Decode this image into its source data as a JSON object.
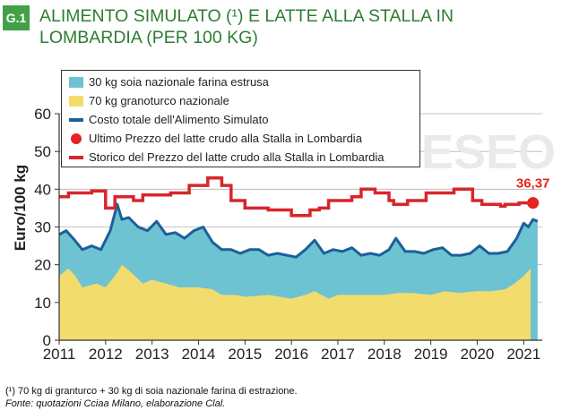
{
  "header": {
    "badge": "G.1",
    "title": "ALIMENTO SIMULATO (¹) E LATTE ALLA STALLA IN LOMBARDIA (PER 100 KG)"
  },
  "footnote": {
    "note": "(¹) 70 kg di granturco + 30 kg di soia nazionale farina di estrazione.",
    "source": "Fonte: quotazioni Cciaa Milano, elaborazione Clal."
  },
  "watermark": "ESEO",
  "colors": {
    "soia": "#6dc3d1",
    "granoturco": "#f2dc6e",
    "costo_totale": "#1d5f9a",
    "ultimo_prezzo": "#e52320",
    "storico_latte": "#d7262b",
    "title_green": "#2e7d32"
  },
  "chart_data": {
    "type": "area",
    "title": "",
    "xlabel": "",
    "ylabel": "Euro/100 kg",
    "xlim": [
      2011,
      2021.4
    ],
    "ylim": [
      0,
      60
    ],
    "yticks": [
      0,
      10,
      20,
      30,
      40,
      50,
      60
    ],
    "xticks": [
      "2011",
      "2012",
      "2013",
      "2014",
      "2015",
      "2016",
      "2017",
      "2018",
      "2019",
      "2020",
      "2021"
    ],
    "legend_position": "top-left",
    "grid": true,
    "legend": [
      {
        "label": "30 kg soia nazionale farina estrusa",
        "kind": "area",
        "color": "#6dc3d1"
      },
      {
        "label": "70 kg granoturco nazionale",
        "kind": "area",
        "color": "#f2dc6e"
      },
      {
        "label": "Costo totale dell'Alimento Simulato",
        "kind": "line",
        "color": "#1d5f9a"
      },
      {
        "label": "Ultimo Prezzo del latte crudo alla Stalla in Lombardia",
        "kind": "dot",
        "color": "#e52320"
      },
      {
        "label": "Storico del Prezzo del latte crudo alla Stalla in Lombardia",
        "kind": "line",
        "color": "#d7262b"
      }
    ],
    "series": [
      {
        "name": "70 kg granoturco nazionale",
        "kind": "area",
        "points": [
          [
            2011.0,
            17
          ],
          [
            2011.2,
            19
          ],
          [
            2011.35,
            17
          ],
          [
            2011.5,
            14
          ],
          [
            2011.8,
            15
          ],
          [
            2012.0,
            14
          ],
          [
            2012.2,
            17
          ],
          [
            2012.35,
            20
          ],
          [
            2012.55,
            18
          ],
          [
            2012.8,
            15
          ],
          [
            2013.0,
            16
          ],
          [
            2013.3,
            15
          ],
          [
            2013.6,
            14
          ],
          [
            2014.0,
            14
          ],
          [
            2014.3,
            13.5
          ],
          [
            2014.5,
            12
          ],
          [
            2014.8,
            12
          ],
          [
            2015.0,
            11.5
          ],
          [
            2015.5,
            12
          ],
          [
            2016.0,
            11
          ],
          [
            2016.3,
            12
          ],
          [
            2016.5,
            13
          ],
          [
            2016.8,
            11
          ],
          [
            2017.0,
            12
          ],
          [
            2017.5,
            12
          ],
          [
            2018.0,
            12
          ],
          [
            2018.3,
            12.5
          ],
          [
            2018.6,
            12.5
          ],
          [
            2019.0,
            12
          ],
          [
            2019.3,
            13
          ],
          [
            2019.6,
            12.5
          ],
          [
            2020.0,
            13
          ],
          [
            2020.3,
            13
          ],
          [
            2020.6,
            13.5
          ],
          [
            2020.8,
            15
          ],
          [
            2021.0,
            17
          ],
          [
            2021.15,
            19
          ]
        ]
      },
      {
        "name": "Costo totale dell'Alimento Simulato",
        "kind": "line",
        "points": [
          [
            2011.0,
            28
          ],
          [
            2011.15,
            29
          ],
          [
            2011.3,
            27
          ],
          [
            2011.5,
            24
          ],
          [
            2011.7,
            25
          ],
          [
            2011.9,
            24
          ],
          [
            2012.1,
            29
          ],
          [
            2012.25,
            36
          ],
          [
            2012.35,
            32
          ],
          [
            2012.5,
            32.5
          ],
          [
            2012.7,
            30
          ],
          [
            2012.9,
            29
          ],
          [
            2013.1,
            31.5
          ],
          [
            2013.3,
            28
          ],
          [
            2013.5,
            28.5
          ],
          [
            2013.7,
            27
          ],
          [
            2013.9,
            29
          ],
          [
            2014.1,
            30
          ],
          [
            2014.3,
            26
          ],
          [
            2014.5,
            24
          ],
          [
            2014.7,
            24
          ],
          [
            2014.9,
            23
          ],
          [
            2015.1,
            24
          ],
          [
            2015.3,
            24
          ],
          [
            2015.5,
            22.5
          ],
          [
            2015.7,
            23
          ],
          [
            2015.9,
            22.5
          ],
          [
            2016.1,
            22
          ],
          [
            2016.3,
            24
          ],
          [
            2016.5,
            26.5
          ],
          [
            2016.7,
            23
          ],
          [
            2016.9,
            24
          ],
          [
            2017.1,
            23.5
          ],
          [
            2017.3,
            24.5
          ],
          [
            2017.5,
            22.5
          ],
          [
            2017.7,
            23
          ],
          [
            2017.9,
            22.5
          ],
          [
            2018.1,
            24
          ],
          [
            2018.25,
            27
          ],
          [
            2018.45,
            23.5
          ],
          [
            2018.65,
            23.5
          ],
          [
            2018.85,
            23
          ],
          [
            2019.05,
            24
          ],
          [
            2019.25,
            24.5
          ],
          [
            2019.45,
            22.5
          ],
          [
            2019.65,
            22.5
          ],
          [
            2019.85,
            23
          ],
          [
            2020.05,
            25
          ],
          [
            2020.25,
            23
          ],
          [
            2020.45,
            23
          ],
          [
            2020.65,
            23.5
          ],
          [
            2020.85,
            27
          ],
          [
            2021.0,
            31
          ],
          [
            2021.1,
            30
          ],
          [
            2021.2,
            32
          ],
          [
            2021.3,
            31.5
          ]
        ]
      },
      {
        "name": "Storico del Prezzo del latte crudo alla Stalla in Lombardia",
        "kind": "line",
        "points": [
          [
            2011.0,
            38
          ],
          [
            2011.2,
            38
          ],
          [
            2011.2,
            39
          ],
          [
            2011.7,
            39
          ],
          [
            2011.7,
            39.5
          ],
          [
            2012.0,
            39.5
          ],
          [
            2012.0,
            35
          ],
          [
            2012.2,
            35
          ],
          [
            2012.2,
            38
          ],
          [
            2012.6,
            38
          ],
          [
            2012.6,
            37
          ],
          [
            2012.8,
            37
          ],
          [
            2012.8,
            38.5
          ],
          [
            2013.4,
            38.5
          ],
          [
            2013.4,
            39
          ],
          [
            2013.8,
            39
          ],
          [
            2013.8,
            41
          ],
          [
            2014.2,
            41
          ],
          [
            2014.2,
            43
          ],
          [
            2014.5,
            43
          ],
          [
            2014.5,
            41
          ],
          [
            2014.7,
            41
          ],
          [
            2014.7,
            37
          ],
          [
            2015.0,
            37
          ],
          [
            2015.0,
            35
          ],
          [
            2015.5,
            35
          ],
          [
            2015.5,
            34.5
          ],
          [
            2016.0,
            34.5
          ],
          [
            2016.0,
            33
          ],
          [
            2016.4,
            33
          ],
          [
            2016.4,
            34.5
          ],
          [
            2016.6,
            34.5
          ],
          [
            2016.6,
            35
          ],
          [
            2016.8,
            35
          ],
          [
            2016.8,
            37
          ],
          [
            2017.3,
            37
          ],
          [
            2017.3,
            38
          ],
          [
            2017.5,
            38
          ],
          [
            2017.5,
            40
          ],
          [
            2017.8,
            40
          ],
          [
            2017.8,
            39
          ],
          [
            2018.1,
            39
          ],
          [
            2018.1,
            37
          ],
          [
            2018.2,
            37
          ],
          [
            2018.2,
            36
          ],
          [
            2018.5,
            36
          ],
          [
            2018.5,
            37
          ],
          [
            2018.9,
            37
          ],
          [
            2018.9,
            39
          ],
          [
            2019.5,
            39
          ],
          [
            2019.5,
            40
          ],
          [
            2019.9,
            40
          ],
          [
            2019.9,
            37
          ],
          [
            2020.1,
            37
          ],
          [
            2020.1,
            36
          ],
          [
            2020.5,
            36
          ],
          [
            2020.5,
            35.5
          ],
          [
            2020.6,
            35.5
          ],
          [
            2020.6,
            36
          ],
          [
            2020.9,
            36
          ],
          [
            2020.9,
            36.37
          ],
          [
            2021.2,
            36.37
          ]
        ]
      },
      {
        "name": "Ultimo Prezzo del latte crudo alla Stalla in Lombardia",
        "kind": "point",
        "points": [
          [
            2021.2,
            36.37
          ]
        ],
        "label": "36,37"
      }
    ]
  }
}
